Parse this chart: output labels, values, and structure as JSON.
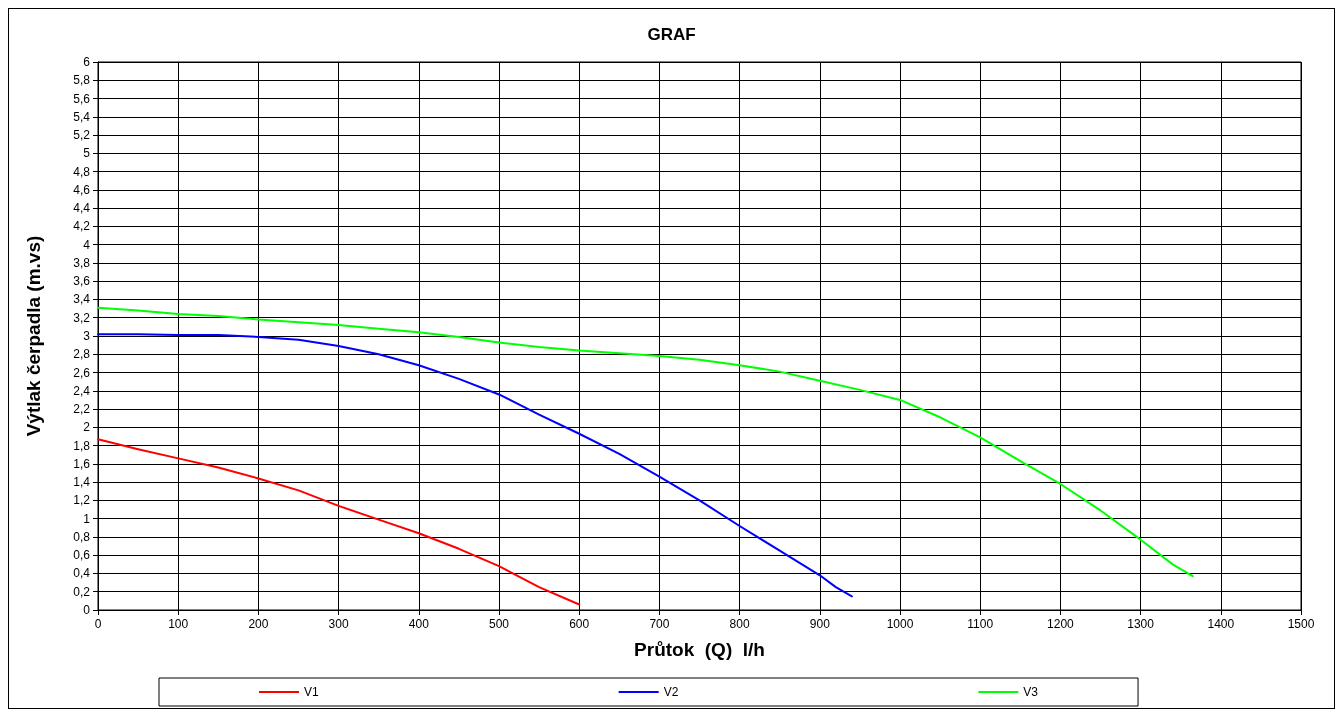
{
  "chart_data": {
    "type": "line",
    "title": "GRAF",
    "xlabel": "Průtok  (Q)  l/h",
    "ylabel": "Výtlak čerpadla (m.vs)",
    "xlim": [
      0,
      1500
    ],
    "xticks": [
      0,
      100,
      200,
      300,
      400,
      500,
      600,
      700,
      800,
      900,
      1000,
      1100,
      1200,
      1300,
      1400,
      1500
    ],
    "ylim": [
      0,
      6
    ],
    "yticks": [
      {
        "value": 0,
        "label": "0"
      },
      {
        "value": 0.2,
        "label": "0,2"
      },
      {
        "value": 0.4,
        "label": "0,4"
      },
      {
        "value": 0.6,
        "label": "0,6"
      },
      {
        "value": 0.8,
        "label": "0,8"
      },
      {
        "value": 1,
        "label": "1"
      },
      {
        "value": 1.2,
        "label": "1,2"
      },
      {
        "value": 1.4,
        "label": "1,4"
      },
      {
        "value": 1.6,
        "label": "1,6"
      },
      {
        "value": 1.8,
        "label": "1,8"
      },
      {
        "value": 2,
        "label": "2"
      },
      {
        "value": 2.2,
        "label": "2,2"
      },
      {
        "value": 2.4,
        "label": "2,4"
      },
      {
        "value": 2.6,
        "label": "2,6"
      },
      {
        "value": 2.8,
        "label": "2,8"
      },
      {
        "value": 3,
        "label": "3"
      },
      {
        "value": 3.2,
        "label": "3,2"
      },
      {
        "value": 3.4,
        "label": "3,4"
      },
      {
        "value": 3.6,
        "label": "3,6"
      },
      {
        "value": 3.8,
        "label": "3,8"
      },
      {
        "value": 4,
        "label": "4"
      },
      {
        "value": 4.2,
        "label": "4,2"
      },
      {
        "value": 4.4,
        "label": "4,4"
      },
      {
        "value": 4.6,
        "label": "4,6"
      },
      {
        "value": 4.8,
        "label": "4,8"
      },
      {
        "value": 5,
        "label": "5"
      },
      {
        "value": 5.2,
        "label": "5,2"
      },
      {
        "value": 5.4,
        "label": "5,4"
      },
      {
        "value": 5.6,
        "label": "5,6"
      },
      {
        "value": 5.8,
        "label": "5,8"
      },
      {
        "value": 6,
        "label": "6"
      }
    ],
    "grid": true,
    "legend": "bottom",
    "marker": "none",
    "line_style": "solid",
    "series": [
      {
        "name": "V1",
        "color": "#ff0000",
        "x": [
          0,
          50,
          100,
          150,
          200,
          250,
          300,
          350,
          400,
          450,
          500,
          550,
          600
        ],
        "values": [
          1.87,
          1.76,
          1.66,
          1.56,
          1.44,
          1.31,
          1.14,
          0.99,
          0.84,
          0.67,
          0.48,
          0.25,
          0.06
        ]
      },
      {
        "name": "V2",
        "color": "#0000ff",
        "x": [
          0,
          50,
          100,
          150,
          200,
          250,
          300,
          350,
          400,
          450,
          500,
          550,
          600,
          650,
          700,
          750,
          800,
          850,
          900,
          920,
          940
        ],
        "values": [
          3.02,
          3.02,
          3.01,
          3.01,
          2.99,
          2.96,
          2.89,
          2.8,
          2.68,
          2.53,
          2.36,
          2.14,
          1.93,
          1.71,
          1.46,
          1.2,
          0.92,
          0.65,
          0.38,
          0.25,
          0.15
        ]
      },
      {
        "name": "V3",
        "color": "#00ff00",
        "x": [
          0,
          50,
          100,
          150,
          200,
          250,
          300,
          350,
          400,
          450,
          500,
          550,
          600,
          650,
          700,
          750,
          800,
          850,
          900,
          950,
          1000,
          1050,
          1100,
          1150,
          1200,
          1250,
          1300,
          1340,
          1365
        ],
        "values": [
          3.31,
          3.28,
          3.24,
          3.22,
          3.18,
          3.15,
          3.12,
          3.08,
          3.04,
          2.99,
          2.93,
          2.88,
          2.84,
          2.81,
          2.78,
          2.74,
          2.68,
          2.61,
          2.51,
          2.41,
          2.3,
          2.11,
          1.89,
          1.63,
          1.38,
          1.09,
          0.77,
          0.5,
          0.37
        ]
      }
    ]
  }
}
